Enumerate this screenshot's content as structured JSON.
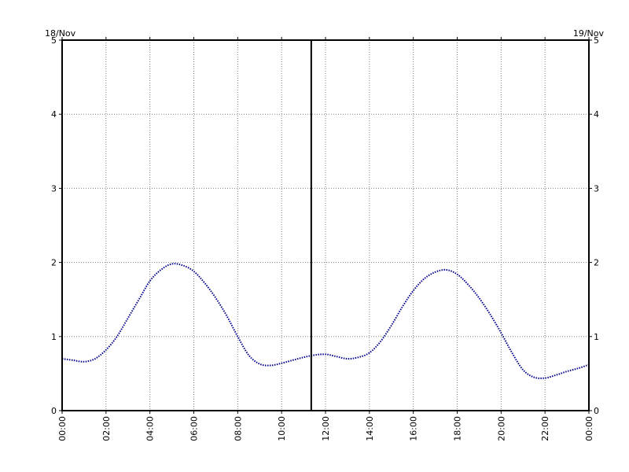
{
  "chart_data": {
    "type": "line",
    "date_start_label": "18/Nov",
    "date_end_label": "19/Nov",
    "x_tick_labels": [
      "00:00",
      "02:00",
      "04:00",
      "06:00",
      "08:00",
      "10:00",
      "12:00",
      "14:00",
      "16:00",
      "18:00",
      "20:00",
      "22:00",
      "00:00"
    ],
    "x_tick_hours": [
      0,
      2,
      4,
      6,
      8,
      10,
      12,
      14,
      16,
      18,
      20,
      22,
      24
    ],
    "xlim": [
      0,
      24
    ],
    "ylim": [
      0,
      5
    ],
    "y_ticks": [
      0,
      1,
      2,
      3,
      4,
      5
    ],
    "y_tick_labels": [
      "0",
      "1",
      "2",
      "3",
      "4",
      "5"
    ],
    "grid": true,
    "grid_style": "dotted",
    "current_time_hour": 11.35,
    "colors": {
      "series": "#00008b",
      "marker_line": "#000000",
      "grid": "#808080"
    },
    "series": [
      {
        "x": [
          0,
          0.5,
          1,
          1.5,
          2,
          2.5,
          3,
          3.5,
          4,
          4.5,
          5,
          5.5,
          6,
          6.5,
          7,
          7.5,
          8,
          8.5,
          9,
          9.5,
          10,
          10.5,
          11,
          11.5,
          12,
          12.5,
          13,
          13.5,
          14,
          14.5,
          15,
          15.5,
          16,
          16.5,
          17,
          17.5,
          18,
          18.5,
          19,
          19.5,
          20,
          20.5,
          21,
          21.5,
          22,
          22.5,
          23,
          23.5,
          24
        ],
        "y": [
          0.7,
          0.68,
          0.66,
          0.7,
          0.82,
          1.0,
          1.25,
          1.5,
          1.75,
          1.9,
          1.98,
          1.96,
          1.88,
          1.72,
          1.52,
          1.28,
          1.0,
          0.75,
          0.63,
          0.61,
          0.64,
          0.68,
          0.72,
          0.75,
          0.76,
          0.73,
          0.7,
          0.72,
          0.78,
          0.93,
          1.15,
          1.4,
          1.62,
          1.78,
          1.87,
          1.9,
          1.84,
          1.7,
          1.52,
          1.3,
          1.05,
          0.78,
          0.55,
          0.45,
          0.44,
          0.48,
          0.53,
          0.57,
          0.62
        ]
      }
    ]
  }
}
